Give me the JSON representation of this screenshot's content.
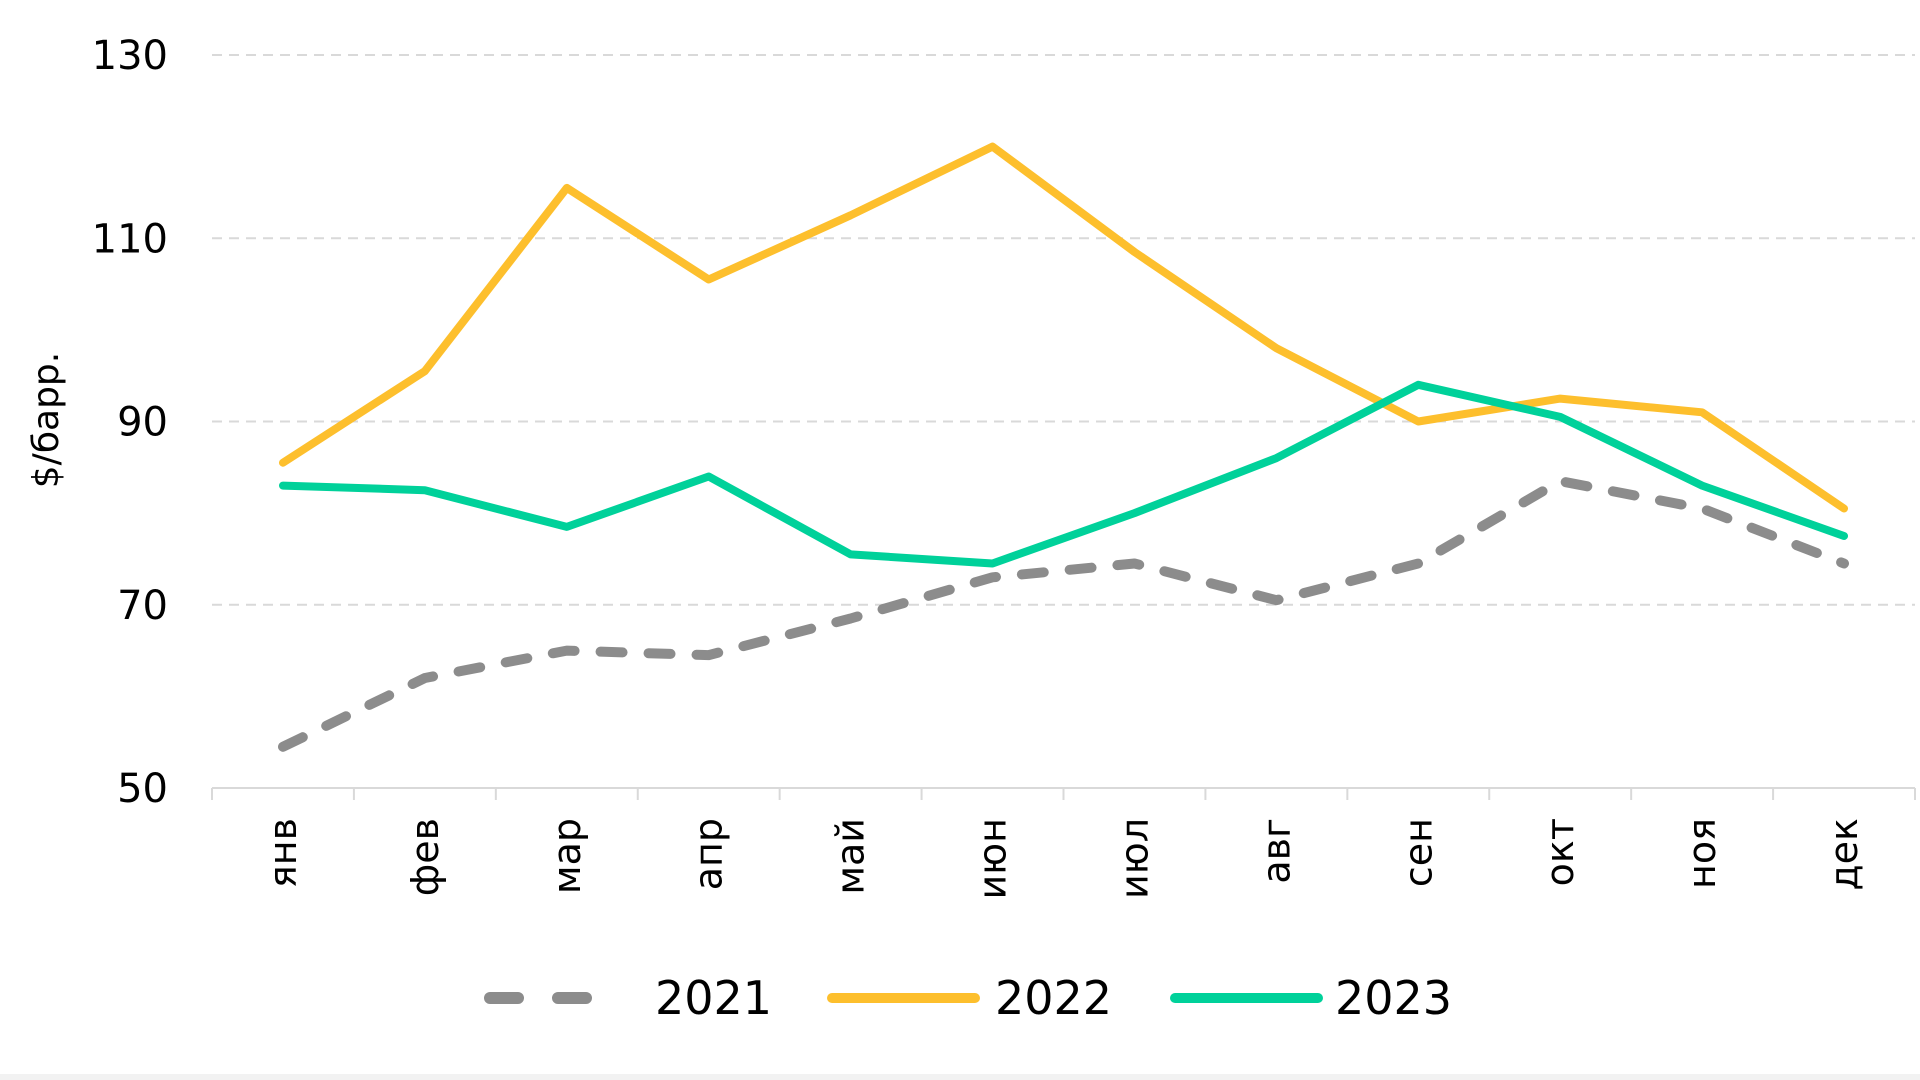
{
  "chart_data": {
    "type": "line",
    "title": "",
    "xlabel": "",
    "ylabel": "$/барр.",
    "ylim": [
      50,
      130
    ],
    "yticks": [
      50,
      70,
      90,
      110,
      130
    ],
    "grid": true,
    "legend_position": "bottom",
    "categories": [
      "янв",
      "фев",
      "мар",
      "апр",
      "май",
      "июн",
      "июл",
      "авг",
      "сен",
      "окт",
      "ноя",
      "дек"
    ],
    "series": [
      {
        "name": "2021",
        "color": "#8c8c8c",
        "style": "dashed",
        "values": [
          54.5,
          62,
          65,
          64.5,
          68.5,
          73,
          74.5,
          70.5,
          74.5,
          83.5,
          80.5,
          74.5
        ]
      },
      {
        "name": "2022",
        "color": "#fdbf2d",
        "style": "solid",
        "values": [
          85.5,
          95.5,
          115.5,
          105.5,
          112.5,
          120,
          108.5,
          98,
          90,
          92.5,
          91,
          80.5
        ]
      },
      {
        "name": "2023",
        "color": "#00d19a",
        "style": "solid",
        "values": [
          83,
          82.5,
          78.5,
          84,
          75.5,
          74.5,
          80,
          86,
          94,
          90.5,
          83,
          77.5
        ]
      }
    ]
  }
}
